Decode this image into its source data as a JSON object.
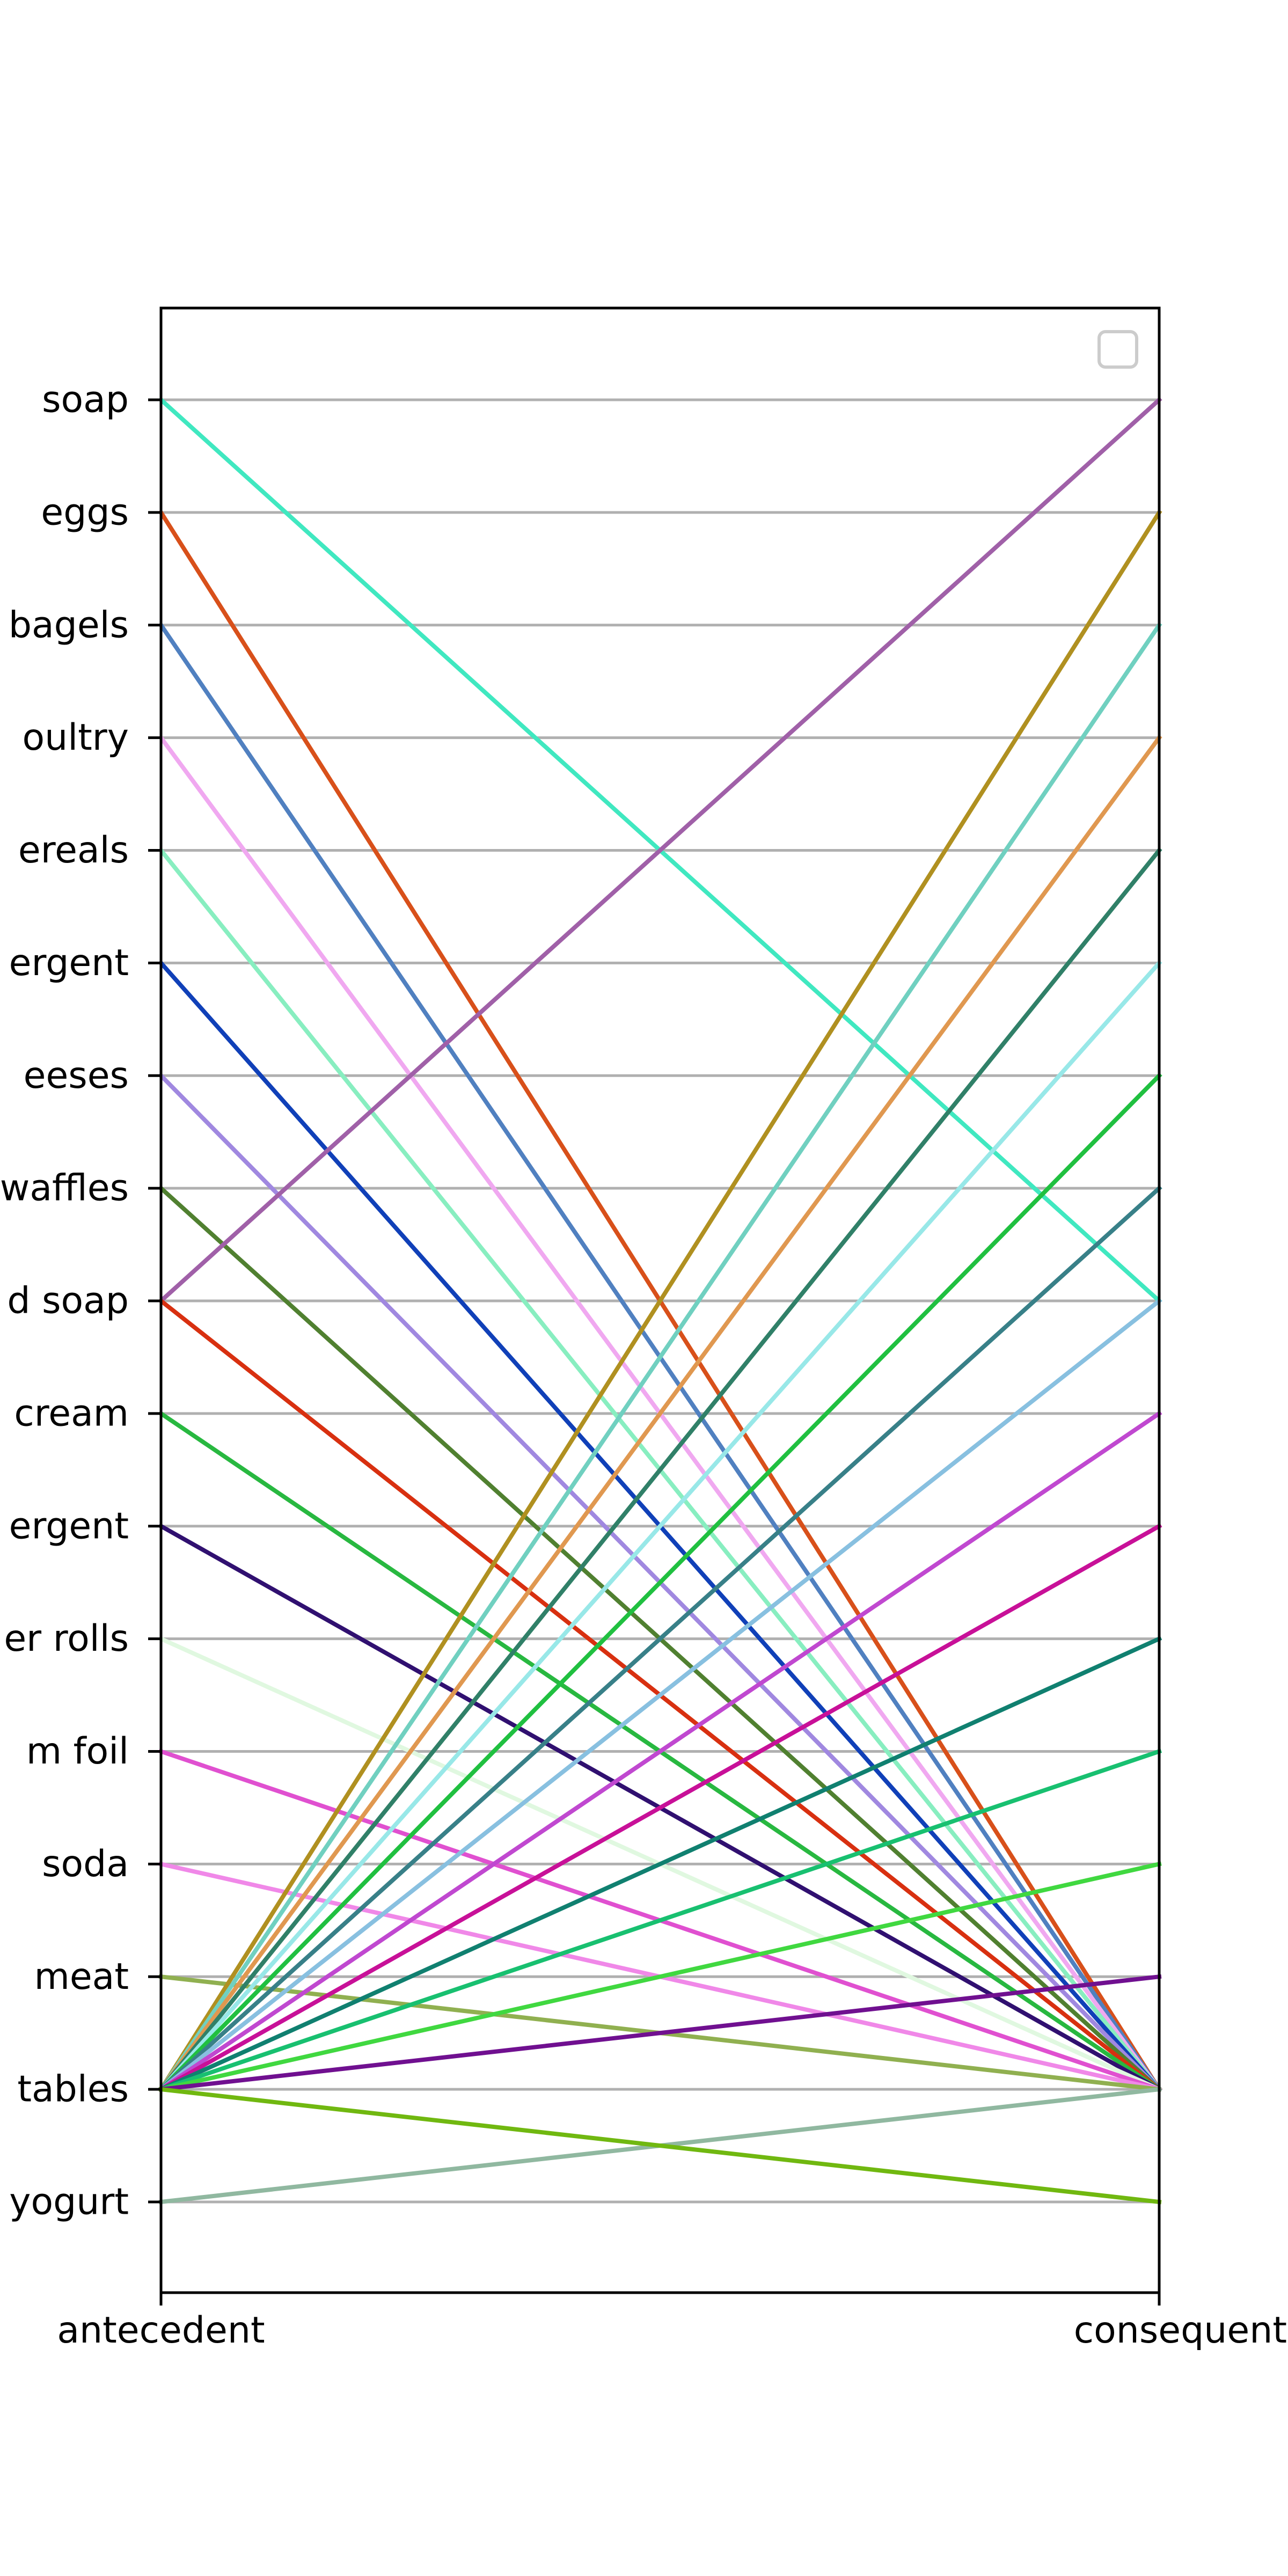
{
  "chart_data": {
    "type": "parallel-coordinates",
    "axes": [
      "antecedent",
      "consequent"
    ],
    "categories": [
      "soap",
      "eggs",
      "bagels",
      "poultry",
      "cereals",
      "detergent",
      "cheeses",
      "waffles",
      "hand soap",
      "ice cream",
      "laundry detergent",
      "toilet rolls",
      "aluminum foil",
      "soda",
      "lunch meat",
      "vegetables",
      "yogurt"
    ],
    "visible_tick_labels": [
      "soap",
      "eggs",
      "bagels",
      "oultry",
      "ereals",
      "ergent",
      "eeses",
      "waffles",
      "d soap",
      "cream",
      "ergent",
      "er rolls",
      "m foil",
      "soda",
      "meat",
      "tables",
      "yogurt"
    ],
    "grid": true,
    "legend": "top-right (empty)",
    "series": [
      {
        "antecedent": "soap",
        "consequent": "hand soap",
        "color": "#40e8c0"
      },
      {
        "antecedent": "eggs",
        "consequent": "vegetables",
        "color": "#d8501a"
      },
      {
        "antecedent": "bagels",
        "consequent": "vegetables",
        "color": "#5080c0"
      },
      {
        "antecedent": "poultry",
        "consequent": "vegetables",
        "color": "#f0a8f0"
      },
      {
        "antecedent": "cereals",
        "consequent": "vegetables",
        "color": "#88eec0"
      },
      {
        "antecedent": "detergent",
        "consequent": "vegetables",
        "color": "#1040b8"
      },
      {
        "antecedent": "cheeses",
        "consequent": "vegetables",
        "color": "#a088e0"
      },
      {
        "antecedent": "waffles",
        "consequent": "vegetables",
        "color": "#508030"
      },
      {
        "antecedent": "hand soap",
        "consequent": "soap",
        "color": "#a060a8"
      },
      {
        "antecedent": "hand soap",
        "consequent": "vegetables",
        "color": "#d83010"
      },
      {
        "antecedent": "ice cream",
        "consequent": "vegetables",
        "color": "#28b840"
      },
      {
        "antecedent": "laundry detergent",
        "consequent": "vegetables",
        "color": "#301070"
      },
      {
        "antecedent": "toilet rolls",
        "consequent": "vegetables",
        "color": "#e0f8e0"
      },
      {
        "antecedent": "aluminum foil",
        "consequent": "vegetables",
        "color": "#e050d0"
      },
      {
        "antecedent": "soda",
        "consequent": "vegetables",
        "color": "#f088e8"
      },
      {
        "antecedent": "lunch meat",
        "consequent": "vegetables",
        "color": "#90b050"
      },
      {
        "antecedent": "yogurt",
        "consequent": "vegetables",
        "color": "#90b8a0"
      },
      {
        "antecedent": "vegetables",
        "consequent": "eggs",
        "color": "#b09020"
      },
      {
        "antecedent": "vegetables",
        "consequent": "bagels",
        "color": "#70d0c0"
      },
      {
        "antecedent": "vegetables",
        "consequent": "poultry",
        "color": "#e09850"
      },
      {
        "antecedent": "vegetables",
        "consequent": "cereals",
        "color": "#308068"
      },
      {
        "antecedent": "vegetables",
        "consequent": "detergent",
        "color": "#98e8e8"
      },
      {
        "antecedent": "vegetables",
        "consequent": "cheeses",
        "color": "#20c040"
      },
      {
        "antecedent": "vegetables",
        "consequent": "waffles",
        "color": "#388088"
      },
      {
        "antecedent": "vegetables",
        "consequent": "hand soap",
        "color": "#88c0e0"
      },
      {
        "antecedent": "vegetables",
        "consequent": "ice cream",
        "color": "#c048d0"
      },
      {
        "antecedent": "vegetables",
        "consequent": "laundry detergent",
        "color": "#c81098"
      },
      {
        "antecedent": "vegetables",
        "consequent": "toilet rolls",
        "color": "#108070"
      },
      {
        "antecedent": "vegetables",
        "consequent": "aluminum foil",
        "color": "#18c070"
      },
      {
        "antecedent": "vegetables",
        "consequent": "soda",
        "color": "#40d840"
      },
      {
        "antecedent": "vegetables",
        "consequent": "lunch meat",
        "color": "#701090"
      },
      {
        "antecedent": "vegetables",
        "consequent": "yogurt",
        "color": "#70b810"
      }
    ]
  }
}
